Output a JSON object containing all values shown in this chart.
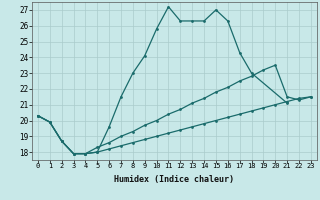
{
  "xlabel": "Humidex (Indice chaleur)",
  "background_color": "#c8e8e8",
  "grid_color": "#aacccc",
  "line_color": "#1a6b6b",
  "xlim": [
    -0.5,
    23.5
  ],
  "ylim": [
    17.5,
    27.5
  ],
  "xticks": [
    0,
    1,
    2,
    3,
    4,
    5,
    6,
    7,
    8,
    9,
    10,
    11,
    12,
    13,
    14,
    15,
    16,
    17,
    18,
    19,
    20,
    21,
    22,
    23
  ],
  "yticks": [
    18,
    19,
    20,
    21,
    22,
    23,
    24,
    25,
    26,
    27
  ],
  "line1_x": [
    0,
    1,
    2,
    3,
    4,
    5,
    6,
    7,
    8,
    9,
    10,
    11,
    12,
    13,
    14,
    15,
    16,
    17,
    18,
    21
  ],
  "line1_y": [
    20.3,
    19.9,
    18.7,
    17.9,
    17.9,
    18.0,
    19.6,
    21.5,
    23.0,
    24.1,
    25.8,
    27.2,
    26.3,
    26.3,
    26.3,
    27.0,
    26.3,
    24.3,
    23.0,
    21.1
  ],
  "line2_x": [
    0,
    1,
    2,
    3,
    4,
    5,
    6,
    7,
    8,
    9,
    10,
    11,
    12,
    13,
    14,
    15,
    16,
    17,
    18,
    19,
    20,
    21,
    22,
    23
  ],
  "line2_y": [
    20.3,
    19.9,
    18.7,
    17.9,
    17.9,
    18.3,
    18.6,
    19.0,
    19.3,
    19.7,
    20.0,
    20.4,
    20.7,
    21.1,
    21.4,
    21.8,
    22.1,
    22.5,
    22.8,
    23.2,
    23.5,
    21.5,
    21.3,
    21.5
  ],
  "line3_x": [
    0,
    1,
    2,
    3,
    4,
    5,
    6,
    7,
    8,
    9,
    10,
    11,
    12,
    13,
    14,
    15,
    16,
    17,
    18,
    19,
    20,
    21,
    22,
    23
  ],
  "line3_y": [
    20.3,
    19.9,
    18.7,
    17.9,
    17.9,
    18.0,
    18.2,
    18.4,
    18.6,
    18.8,
    19.0,
    19.2,
    19.4,
    19.6,
    19.8,
    20.0,
    20.2,
    20.4,
    20.6,
    20.8,
    21.0,
    21.2,
    21.4,
    21.5
  ]
}
